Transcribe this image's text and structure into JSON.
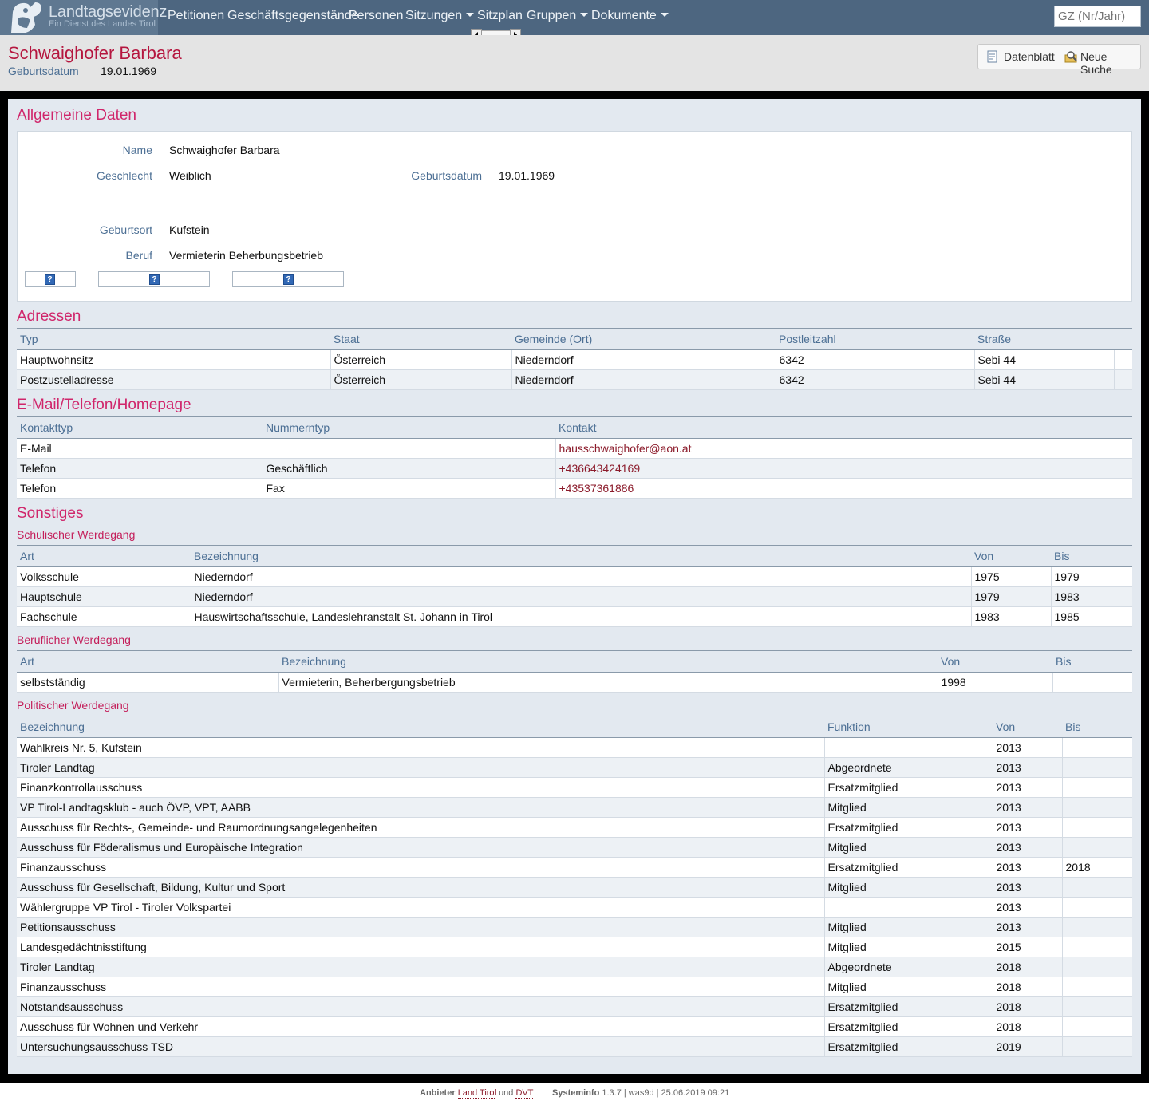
{
  "app": {
    "title": "Landtagsevidenz",
    "subtitle": "Ein Dienst des Landes Tirol"
  },
  "nav": {
    "items": [
      {
        "label": "Petitionen"
      },
      {
        "label": "Geschäftsgegenstände"
      },
      {
        "label": "Personen"
      },
      {
        "label": "Sitzungen"
      },
      {
        "label": "Sitzplan"
      },
      {
        "label": "Gruppen"
      },
      {
        "label": "Dokumente"
      }
    ],
    "search_placeholder": "GZ (Nr/Jahr)"
  },
  "header": {
    "name": "Schwaighofer Barbara",
    "birth_label": "Geburtsdatum",
    "birth_value": "19.01.1969",
    "btn_datenblatt": "Datenblatt",
    "btn_neue_suche": "Neue Suche"
  },
  "general": {
    "title": "Allgemeine Daten",
    "name_label": "Name",
    "name_value": "Schwaighofer Barbara",
    "gender_label": "Geschlecht",
    "gender_value": "Weiblich",
    "birthdate_label": "Geburtsdatum",
    "birthdate_value": "19.01.1969",
    "birthplace_label": "Geburtsort",
    "birthplace_value": "Kufstein",
    "job_label": "Beruf",
    "job_value": "Vermieterin Beherbungsbetrieb",
    "help_glyph": "?"
  },
  "addresses": {
    "title": "Adressen",
    "headers": [
      "Typ",
      "Staat",
      "Gemeinde (Ort)",
      "Postleitzahl",
      "Straße"
    ],
    "rows": [
      [
        "Hauptwohnsitz",
        "Österreich",
        "Niederndorf",
        "6342",
        "Sebi 44"
      ],
      [
        "Postzustelladresse",
        "Österreich",
        "Niederndorf",
        "6342",
        "Sebi 44"
      ]
    ]
  },
  "contact": {
    "title": "E-Mail/Telefon/Homepage",
    "headers": [
      "Kontakttyp",
      "Nummerntyp",
      "Kontakt"
    ],
    "rows": [
      [
        "E-Mail",
        "",
        "hausschwaighofer@aon.at"
      ],
      [
        "Telefon",
        "Geschäftlich",
        "+436643424169"
      ],
      [
        "Telefon",
        "Fax",
        "+43537361886"
      ]
    ]
  },
  "misc": {
    "title": "Sonstiges"
  },
  "school": {
    "title": "Schulischer Werdegang",
    "headers": [
      "Art",
      "Bezeichnung",
      "Von",
      "Bis"
    ],
    "rows": [
      [
        "Volksschule",
        "Niederndorf",
        "1975",
        "1979"
      ],
      [
        "Hauptschule",
        "Niederndorf",
        "1979",
        "1983"
      ],
      [
        "Fachschule",
        "Hauswirtschaftsschule, Landeslehranstalt St. Johann in Tirol",
        "1983",
        "1985"
      ]
    ]
  },
  "career": {
    "title": "Beruflicher Werdegang",
    "headers": [
      "Art",
      "Bezeichnung",
      "Von",
      "Bis"
    ],
    "rows": [
      [
        "selbstständig",
        "Vermieterin, Beherbergungsbetrieb",
        "1998",
        ""
      ]
    ]
  },
  "political": {
    "title": "Politischer Werdegang",
    "headers": [
      "Bezeichnung",
      "Funktion",
      "Von",
      "Bis"
    ],
    "rows": [
      [
        "Wahlkreis Nr. 5, Kufstein",
        "",
        "2013",
        ""
      ],
      [
        "Tiroler Landtag",
        "Abgeordnete",
        "2013",
        ""
      ],
      [
        "Finanzkontrollausschuss",
        "Ersatzmitglied",
        "2013",
        ""
      ],
      [
        "VP Tirol-Landtagsklub - auch ÖVP, VPT, AABB",
        "Mitglied",
        "2013",
        ""
      ],
      [
        "Ausschuss für Rechts-, Gemeinde- und Raumordnungsangelegenheiten",
        "Ersatzmitglied",
        "2013",
        ""
      ],
      [
        "Ausschuss für Föderalismus und Europäische Integration",
        "Mitglied",
        "2013",
        ""
      ],
      [
        "Finanzausschuss",
        "Ersatzmitglied",
        "2013",
        "2018"
      ],
      [
        "Ausschuss für Gesellschaft, Bildung, Kultur und Sport",
        "Mitglied",
        "2013",
        ""
      ],
      [
        "Wählergruppe VP Tirol - Tiroler Volkspartei",
        "",
        "2013",
        ""
      ],
      [
        "Petitionsausschuss",
        "Mitglied",
        "2013",
        ""
      ],
      [
        "Landesgedächtnisstiftung",
        "Mitglied",
        "2015",
        ""
      ],
      [
        "Tiroler Landtag",
        "Abgeordnete",
        "2018",
        ""
      ],
      [
        "Finanzausschuss",
        "Mitglied",
        "2018",
        ""
      ],
      [
        "Notstandsausschuss",
        "Ersatzmitglied",
        "2018",
        ""
      ],
      [
        "Ausschuss für Wohnen und Verkehr",
        "Ersatzmitglied",
        "2018",
        ""
      ],
      [
        "Untersuchungsausschuss TSD",
        "Ersatzmitglied",
        "2019",
        ""
      ]
    ]
  },
  "footer": {
    "provider_label": "Anbieter",
    "provider_1": "Land Tirol",
    "and": "und",
    "provider_2": "DVT",
    "sysinfo_label": "Systeminfo",
    "sysinfo_value": "1.3.7 | was9d | 25.06.2019 09:21"
  }
}
